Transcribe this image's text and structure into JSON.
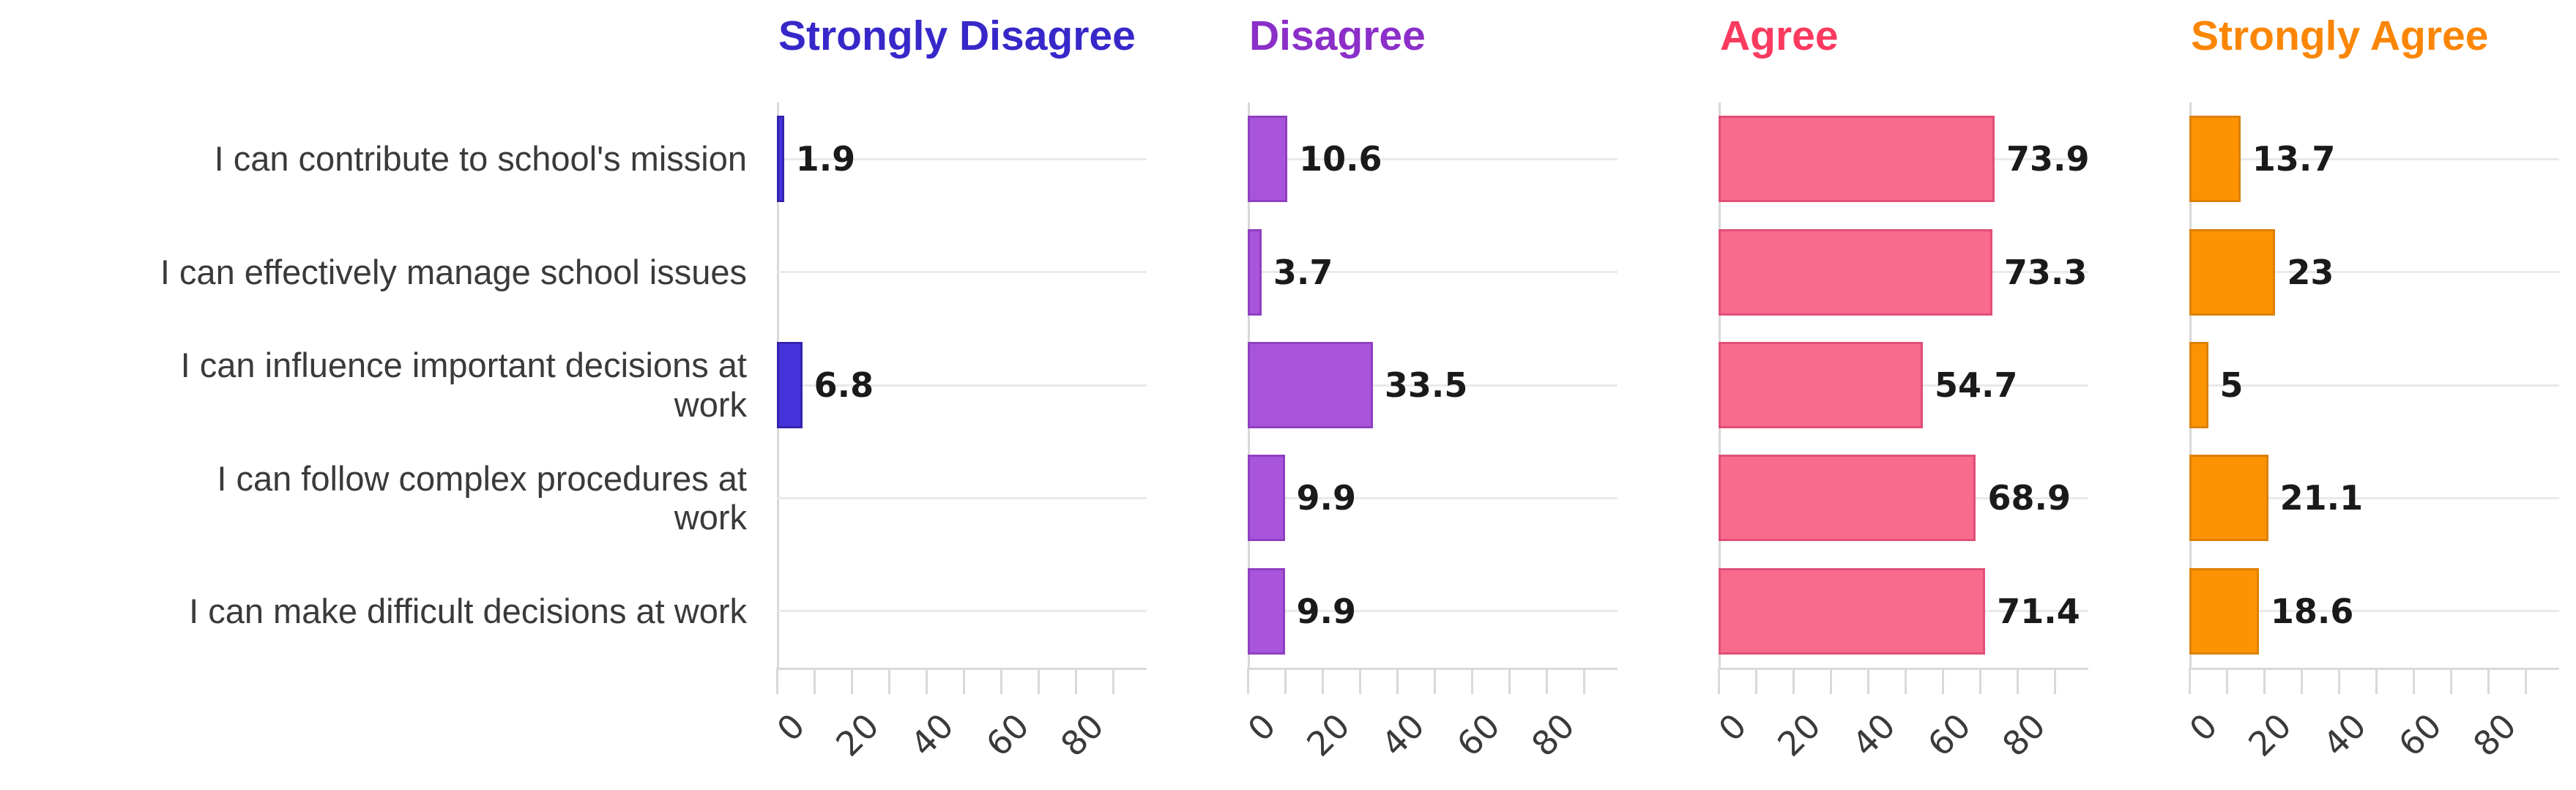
{
  "chart_data": {
    "type": "bar",
    "orientation": "horizontal",
    "title": "",
    "categories": [
      "I can contribute to school's mission",
      "I can effectively manage school issues",
      "I can influence important decisions at\nwork",
      "I can follow complex procedures at\nwork",
      "I can make difficult decisions at work"
    ],
    "series": [
      {
        "name": "Strongly Disagree",
        "values": [
          1.9,
          null,
          6.8,
          null,
          null
        ],
        "bar_color": "#4633d9",
        "bar_edge_color": "#3423b0",
        "header_color": "#3728c9"
      },
      {
        "name": "Disagree",
        "values": [
          10.6,
          3.7,
          33.5,
          9.9,
          9.9
        ],
        "bar_color": "#a855dc",
        "bar_edge_color": "#8f3fc2",
        "header_color": "#8c2fc9"
      },
      {
        "name": "Agree",
        "values": [
          73.9,
          73.3,
          54.7,
          68.9,
          71.4
        ],
        "bar_color": "#f96b8d",
        "bar_edge_color": "#e04f77",
        "header_color": "#fb3a5f"
      },
      {
        "name": "Strongly Agree",
        "values": [
          13.7,
          23,
          5,
          21.1,
          18.6
        ],
        "bar_color": "#fc9303",
        "bar_edge_color": "#dd8002",
        "header_color": "#fb8604"
      }
    ],
    "xlim": [
      0,
      99
    ],
    "x_minor_tick_step": 10,
    "x_major_ticks": [
      0,
      20,
      40,
      60,
      80
    ],
    "legend_position": "panel headers (top of each facet)",
    "grid": "light horizontal gridline per category row",
    "value_labels": "shown at end of each bar",
    "colors": {
      "grid_line": "#e9e9e9",
      "axis_line": "#d9d9d9",
      "category_text": "#3a3a3a",
      "tick_text": "#3a3a3a",
      "value_text": "#1a1a1a",
      "background": "#ffffff"
    }
  }
}
